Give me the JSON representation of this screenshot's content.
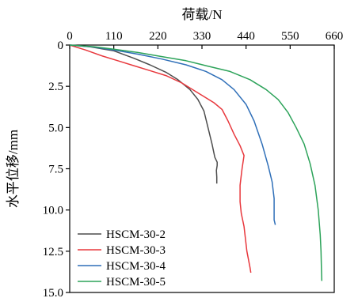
{
  "chart_data": {
    "type": "line",
    "title": "",
    "xlabel": "荷载/N",
    "ylabel": "水平位移/mm",
    "x_axis_position": "top",
    "y_axis_inverted": true,
    "xlim": [
      0,
      660
    ],
    "ylim": [
      0,
      15
    ],
    "xticks": [
      0,
      110,
      220,
      330,
      440,
      550,
      660
    ],
    "xtick_labels": [
      "0",
      "110",
      "220",
      "330",
      "440",
      "550",
      "660"
    ],
    "yticks": [
      0,
      2.5,
      5.0,
      7.5,
      10.0,
      12.5,
      15.0
    ],
    "ytick_labels": [
      "0",
      "2.5",
      "5.0",
      "7.5",
      "10.0",
      "12.5",
      "15.0"
    ],
    "grid": false,
    "legend_position": "bottom-left",
    "series": [
      {
        "name": "HSCM-30-2",
        "color": "#4d4d4d",
        "points": [
          [
            0,
            0
          ],
          [
            50,
            0.1
          ],
          [
            110,
            0.35
          ],
          [
            160,
            0.8
          ],
          [
            200,
            1.2
          ],
          [
            240,
            1.65
          ],
          [
            270,
            2.1
          ],
          [
            300,
            2.7
          ],
          [
            320,
            3.3
          ],
          [
            335,
            4.0
          ],
          [
            345,
            5.0
          ],
          [
            355,
            6.0
          ],
          [
            362,
            6.8
          ],
          [
            368,
            7.1
          ],
          [
            368,
            7.3
          ],
          [
            366,
            7.6
          ],
          [
            367,
            8.0
          ],
          [
            367,
            8.4
          ]
        ]
      },
      {
        "name": "HSCM-30-3",
        "color": "#e8383d",
        "points": [
          [
            0,
            0
          ],
          [
            40,
            0.3
          ],
          [
            80,
            0.65
          ],
          [
            120,
            0.95
          ],
          [
            160,
            1.25
          ],
          [
            200,
            1.55
          ],
          [
            240,
            1.85
          ],
          [
            280,
            2.3
          ],
          [
            320,
            2.9
          ],
          [
            360,
            3.5
          ],
          [
            380,
            3.9
          ],
          [
            395,
            4.6
          ],
          [
            410,
            5.4
          ],
          [
            425,
            6.1
          ],
          [
            435,
            6.7
          ],
          [
            430,
            7.5
          ],
          [
            425,
            8.5
          ],
          [
            425,
            9.5
          ],
          [
            428,
            10.2
          ],
          [
            435,
            11.0
          ],
          [
            442,
            12.5
          ],
          [
            450,
            13.5
          ],
          [
            452,
            13.8
          ]
        ]
      },
      {
        "name": "HSCM-30-4",
        "color": "#2f6fb8",
        "points": [
          [
            0,
            0
          ],
          [
            60,
            0.12
          ],
          [
            110,
            0.3
          ],
          [
            170,
            0.55
          ],
          [
            230,
            0.85
          ],
          [
            290,
            1.2
          ],
          [
            340,
            1.6
          ],
          [
            380,
            2.1
          ],
          [
            410,
            2.7
          ],
          [
            440,
            3.6
          ],
          [
            460,
            4.6
          ],
          [
            480,
            6.0
          ],
          [
            495,
            7.3
          ],
          [
            505,
            8.3
          ],
          [
            510,
            9.3
          ],
          [
            510,
            10.0
          ],
          [
            510,
            10.6
          ],
          [
            513,
            10.9
          ]
        ]
      },
      {
        "name": "HSCM-30-5",
        "color": "#2da35a",
        "points": [
          [
            0,
            0
          ],
          [
            60,
            0.1
          ],
          [
            110,
            0.25
          ],
          [
            170,
            0.45
          ],
          [
            230,
            0.7
          ],
          [
            290,
            0.95
          ],
          [
            340,
            1.25
          ],
          [
            400,
            1.6
          ],
          [
            450,
            2.1
          ],
          [
            490,
            2.7
          ],
          [
            520,
            3.3
          ],
          [
            545,
            4.1
          ],
          [
            565,
            5.0
          ],
          [
            585,
            6.0
          ],
          [
            600,
            7.2
          ],
          [
            612,
            8.5
          ],
          [
            620,
            10.0
          ],
          [
            625,
            11.5
          ],
          [
            627,
            12.5
          ],
          [
            628,
            13.5
          ],
          [
            629,
            14.3
          ]
        ]
      }
    ]
  }
}
